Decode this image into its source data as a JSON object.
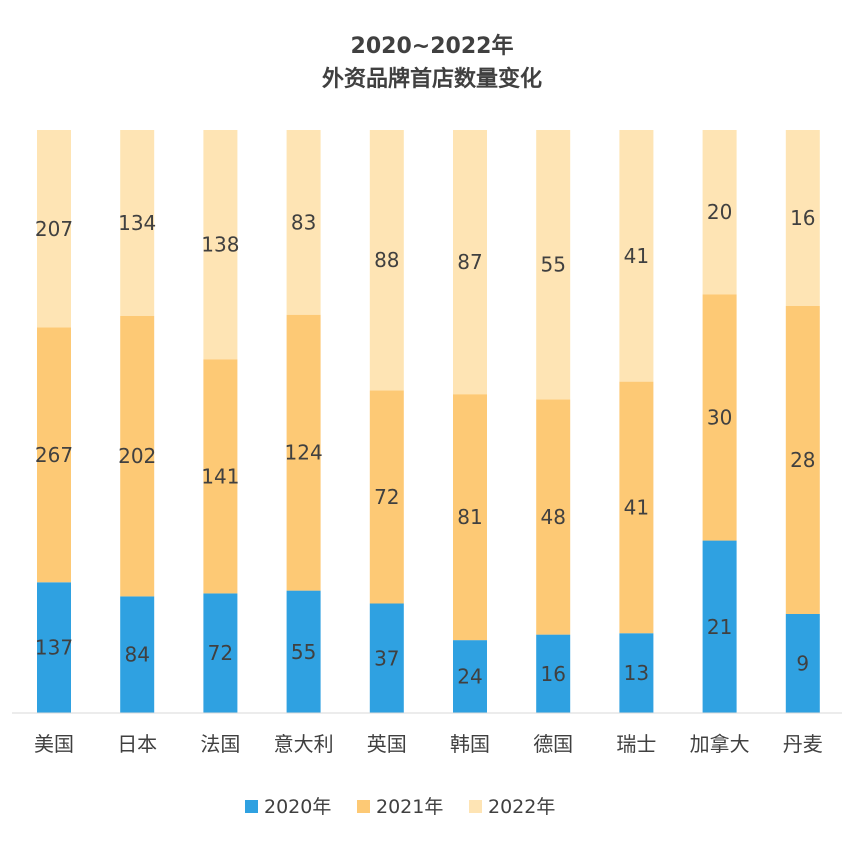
{
  "chart_data": {
    "type": "bar",
    "stacked": "percent",
    "title": [
      "2020~2022年",
      "外资品牌首店数量变化"
    ],
    "categories": [
      "美国",
      "日本",
      "法国",
      "意大利",
      "英国",
      "韩国",
      "德国",
      "瑞士",
      "加拿大",
      "丹麦"
    ],
    "series": [
      {
        "name": "2020年",
        "color": "#2FA1E1",
        "values": [
          137,
          84,
          72,
          55,
          37,
          24,
          16,
          13,
          21,
          9
        ]
      },
      {
        "name": "2021年",
        "color": "#FDC975",
        "values": [
          267,
          202,
          141,
          124,
          72,
          81,
          48,
          41,
          30,
          28
        ]
      },
      {
        "name": "2022年",
        "color": "#FEE4B4",
        "values": [
          207,
          134,
          138,
          83,
          88,
          87,
          55,
          41,
          20,
          16
        ]
      }
    ],
    "ylim": [
      0,
      1
    ],
    "grid": false,
    "legend": "bottom"
  }
}
